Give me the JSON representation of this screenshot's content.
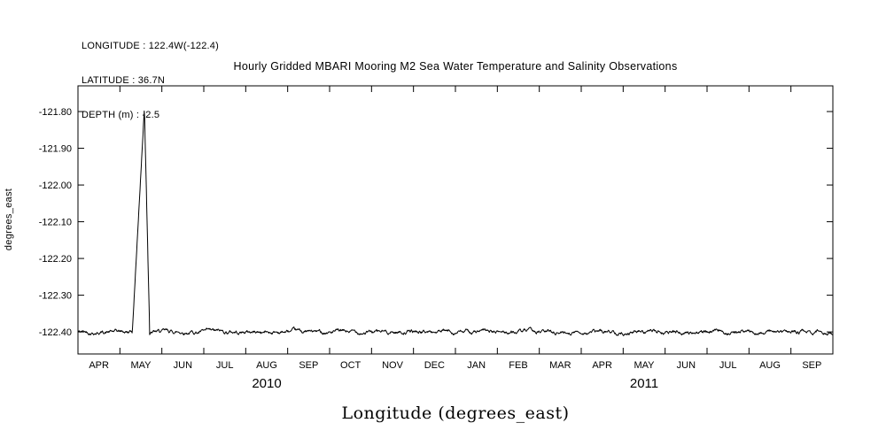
{
  "header": {
    "lines": [
      "LONGITUDE : 122.4W(-122.4)",
      "LATITUDE : 36.7N",
      "DEPTH (m) : -2.5"
    ]
  },
  "chart_data": {
    "type": "line",
    "title": "Hourly Gridded MBARI Mooring M2 Sea Water Temperature and Salinity Observations",
    "xlabel": "Longitude (degrees_east)",
    "ylabel": "degrees_east",
    "ylim": [
      -122.46,
      -121.73
    ],
    "grid": false,
    "legend": "none",
    "line_color": "#000000",
    "yticks": {
      "values": [
        -121.8,
        -121.9,
        -122.0,
        -122.1,
        -122.2,
        -122.3,
        -122.4
      ],
      "labels": [
        "-121.80",
        "-121.90",
        "-122.00",
        "-122.10",
        "-122.20",
        "-122.30",
        "-122.40"
      ]
    },
    "x_categories": [
      "APR",
      "MAY",
      "JUN",
      "JUL",
      "AUG",
      "SEP",
      "OCT",
      "NOV",
      "DEC",
      "JAN",
      "FEB",
      "MAR",
      "APR",
      "MAY",
      "JUN",
      "JUL",
      "AUG",
      "SEP"
    ],
    "years": [
      {
        "label": "2010",
        "start_month": 0,
        "end_month": 9
      },
      {
        "label": "2011",
        "start_month": 9,
        "end_month": 18
      }
    ],
    "series": [
      {
        "name": "LONGITUDE",
        "baseline": -122.4,
        "noise_amplitude": 0.013,
        "spike": {
          "x_frac": 0.088,
          "peak_value": -121.79,
          "rise_frac": 0.016,
          "fall_frac": 0.007
        },
        "n_points": 1800,
        "seed": 42
      }
    ]
  }
}
